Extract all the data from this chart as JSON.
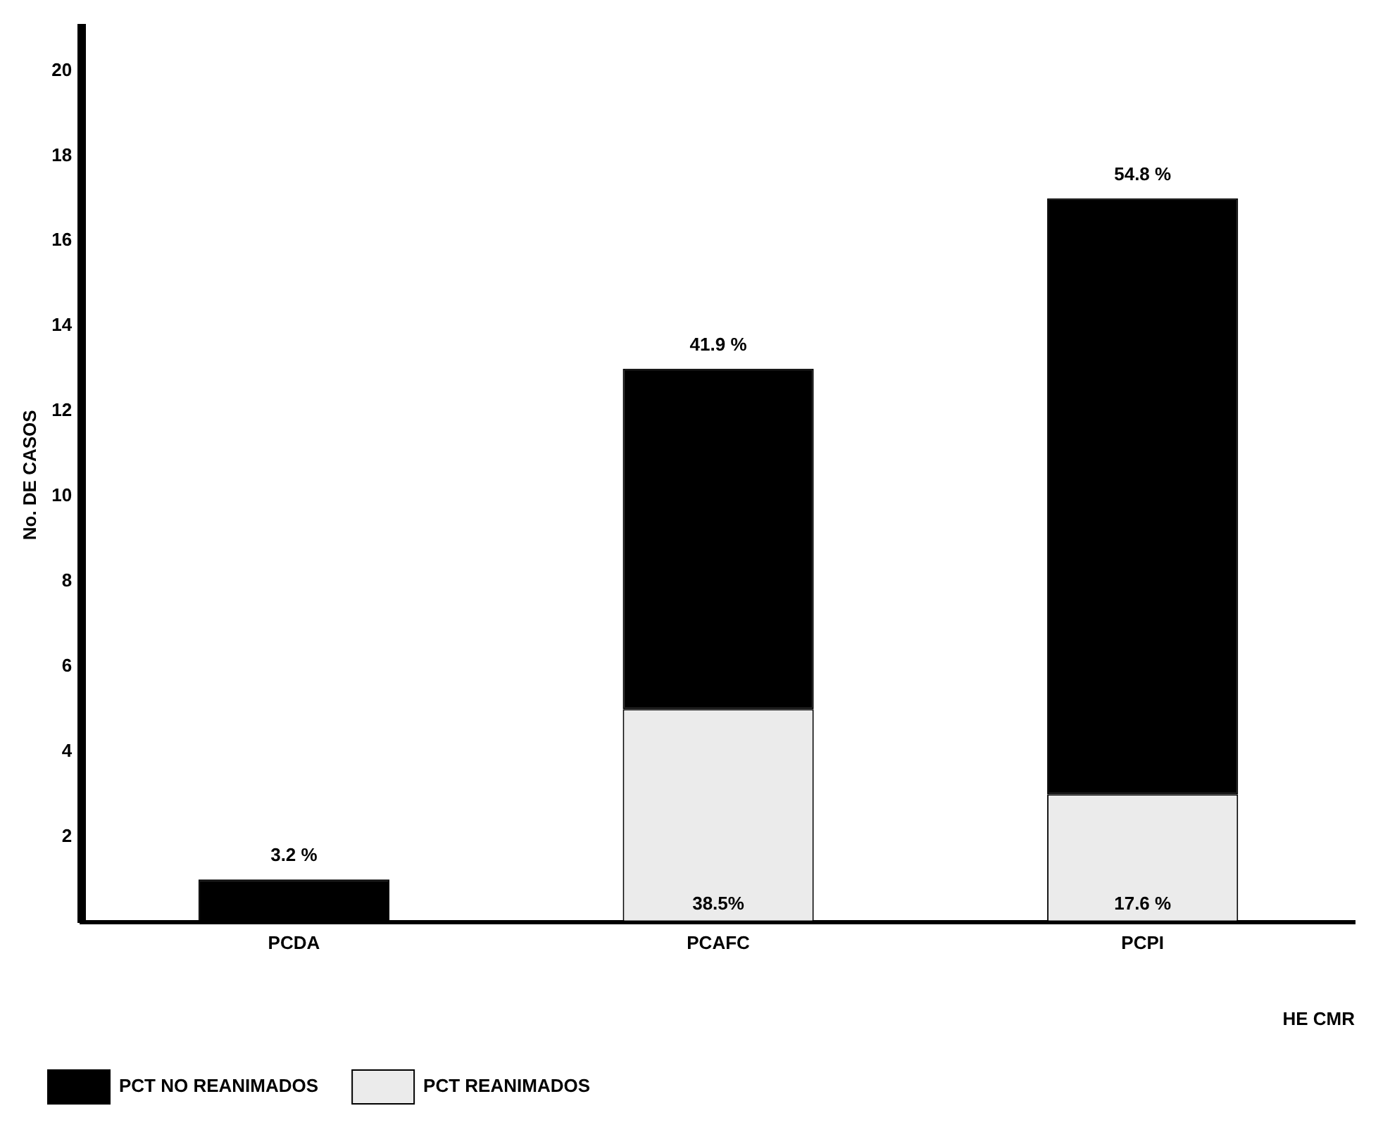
{
  "chart_data": {
    "type": "bar",
    "stacked": true,
    "ylabel": "No. DE CASOS",
    "xlabel": "HE CMR",
    "categories": [
      "PCDA",
      "PCAFC",
      "PCPI"
    ],
    "series": [
      {
        "name": "PCT REANIMADOS",
        "color": "#ebebeb",
        "values": [
          0,
          5,
          3
        ]
      },
      {
        "name": "PCT NO REANIMADOS",
        "color": "#000000",
        "values": [
          1,
          8,
          14
        ]
      }
    ],
    "annotations": [
      {
        "text": "3.2 %",
        "x": "PCDA",
        "y": 1
      },
      {
        "text": "41.9 %",
        "x": "PCAFC",
        "y": 13
      },
      {
        "text": "54.8 %",
        "x": "PCPI",
        "y": 17
      },
      {
        "text": "38.5%",
        "x": "PCAFC",
        "y": 0
      },
      {
        "text": "17.6 %",
        "x": "PCPI",
        "y": 0
      }
    ],
    "ylim": [
      0,
      21
    ],
    "yticks": [
      2,
      4,
      6,
      8,
      10,
      12,
      14,
      16,
      18,
      20
    ],
    "grid": false,
    "legend": "bottom left"
  }
}
